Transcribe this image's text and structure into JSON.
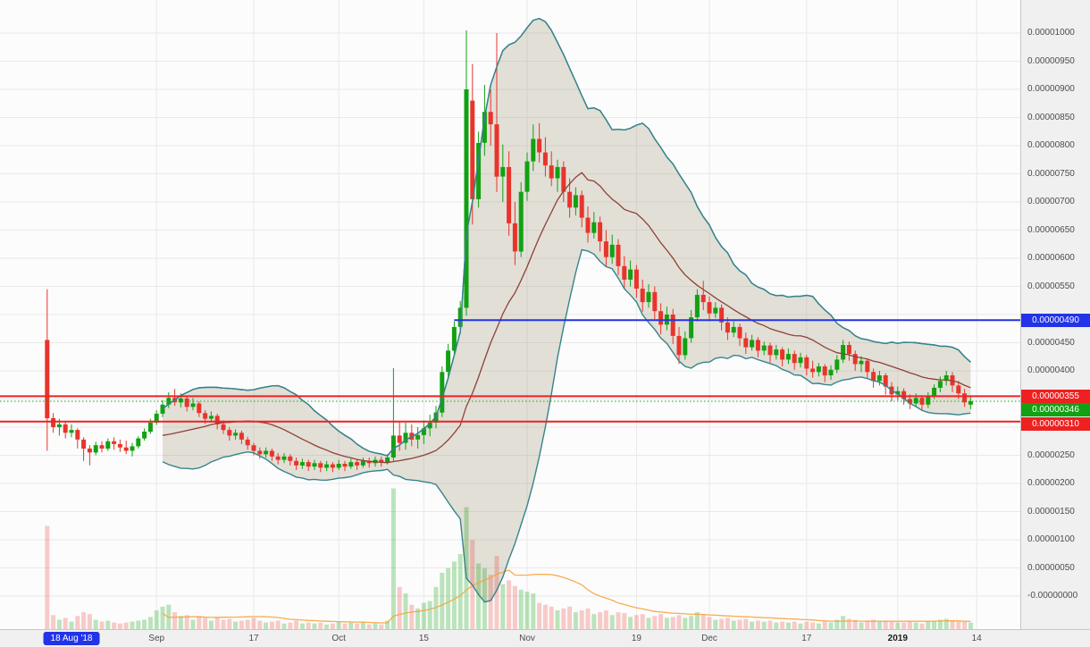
{
  "chart_data": {
    "type": "candlestick",
    "value_scale": "price values are in units of 0.00000001",
    "y_axis": {
      "labels": [
        {
          "text": "0.00001000",
          "value": 1000
        },
        {
          "text": "0.00000950",
          "value": 950
        },
        {
          "text": "0.00000900",
          "value": 900
        },
        {
          "text": "0.00000850",
          "value": 850
        },
        {
          "text": "0.00000800",
          "value": 800
        },
        {
          "text": "0.00000750",
          "value": 750
        },
        {
          "text": "0.00000700",
          "value": 700
        },
        {
          "text": "0.00000650",
          "value": 650
        },
        {
          "text": "0.00000600",
          "value": 600
        },
        {
          "text": "0.00000550",
          "value": 550
        },
        {
          "text": "0.00000450",
          "value": 450
        },
        {
          "text": "0.00000400",
          "value": 400
        },
        {
          "text": "0.00000250",
          "value": 250
        },
        {
          "text": "0.00000200",
          "value": 200
        },
        {
          "text": "0.00000150",
          "value": 150
        },
        {
          "text": "0.00000100",
          "value": 100
        },
        {
          "text": "0.00000050",
          "value": 50
        },
        {
          "text": "-0.00000000",
          "value": 0
        }
      ],
      "grid_step": 50,
      "range": [
        0,
        1045
      ]
    },
    "x_axis": {
      "ticks": [
        {
          "label": "Sep",
          "day": 18
        },
        {
          "label": "17",
          "day": 34
        },
        {
          "label": "Oct",
          "day": 48
        },
        {
          "label": "15",
          "day": 62
        },
        {
          "label": "Nov",
          "day": 79
        },
        {
          "label": "19",
          "day": 97
        },
        {
          "label": "Dec",
          "day": 109
        },
        {
          "label": "17",
          "day": 125
        },
        {
          "label": "2019",
          "day": 140,
          "emphasis": true
        },
        {
          "label": "14",
          "day": 153
        }
      ],
      "date_badge": {
        "label": "18 Aug '18",
        "day": 4,
        "color": "#2233e8"
      }
    },
    "candle_colors": {
      "up": "#12a112",
      "down": "#e8342c"
    },
    "candles": {
      "columns": [
        "open",
        "high",
        "low",
        "close",
        "volume"
      ],
      "rows": [
        [
          455,
          545,
          258,
          316,
          110
        ],
        [
          316,
          325,
          290,
          300,
          15
        ],
        [
          300,
          315,
          285,
          305,
          10
        ],
        [
          305,
          310,
          280,
          290,
          12
        ],
        [
          290,
          305,
          282,
          295,
          8
        ],
        [
          295,
          298,
          262,
          278,
          14
        ],
        [
          278,
          282,
          240,
          262,
          18
        ],
        [
          262,
          268,
          232,
          255,
          16
        ],
        [
          255,
          274,
          250,
          268,
          10
        ],
        [
          268,
          275,
          255,
          262,
          8
        ],
        [
          262,
          280,
          258,
          275,
          9
        ],
        [
          275,
          282,
          260,
          270,
          7
        ],
        [
          270,
          278,
          256,
          264,
          6
        ],
        [
          264,
          276,
          252,
          258,
          7
        ],
        [
          258,
          272,
          248,
          266,
          8
        ],
        [
          266,
          284,
          262,
          280,
          9
        ],
        [
          280,
          298,
          276,
          292,
          10
        ],
        [
          292,
          315,
          288,
          308,
          13
        ],
        [
          308,
          330,
          304,
          324,
          20
        ],
        [
          324,
          348,
          318,
          340,
          24
        ],
        [
          340,
          362,
          334,
          352,
          26
        ],
        [
          352,
          368,
          338,
          344,
          18
        ],
        [
          344,
          360,
          335,
          351,
          14
        ],
        [
          351,
          356,
          328,
          336,
          15
        ],
        [
          336,
          352,
          330,
          342,
          10
        ],
        [
          342,
          346,
          318,
          325,
          14
        ],
        [
          325,
          330,
          306,
          315,
          12
        ],
        [
          315,
          328,
          308,
          320,
          9
        ],
        [
          320,
          324,
          296,
          305,
          12
        ],
        [
          305,
          312,
          288,
          295,
          10
        ],
        [
          295,
          300,
          276,
          285,
          11
        ],
        [
          285,
          296,
          278,
          290,
          8
        ],
        [
          290,
          294,
          270,
          278,
          9
        ],
        [
          278,
          283,
          260,
          268,
          10
        ],
        [
          268,
          272,
          250,
          258,
          12
        ],
        [
          258,
          264,
          244,
          252,
          9
        ],
        [
          252,
          264,
          246,
          258,
          7
        ],
        [
          258,
          262,
          240,
          248,
          8
        ],
        [
          248,
          254,
          234,
          242,
          9
        ],
        [
          242,
          254,
          236,
          248,
          6
        ],
        [
          248,
          252,
          232,
          240,
          7
        ],
        [
          240,
          246,
          224,
          232,
          9
        ],
        [
          232,
          244,
          226,
          238,
          6
        ],
        [
          238,
          242,
          222,
          230,
          7
        ],
        [
          230,
          242,
          224,
          236,
          6
        ],
        [
          236,
          240,
          220,
          228,
          7
        ],
        [
          228,
          240,
          222,
          234,
          5
        ],
        [
          234,
          238,
          220,
          228,
          6
        ],
        [
          228,
          242,
          224,
          235,
          8
        ],
        [
          235,
          240,
          222,
          230,
          6
        ],
        [
          230,
          244,
          226,
          238,
          7
        ],
        [
          238,
          242,
          224,
          232,
          6
        ],
        [
          232,
          246,
          228,
          240,
          7
        ],
        [
          240,
          246,
          228,
          236,
          5
        ],
        [
          236,
          248,
          230,
          242,
          6
        ],
        [
          242,
          248,
          230,
          238,
          5
        ],
        [
          238,
          252,
          234,
          246,
          9
        ],
        [
          246,
          405,
          240,
          285,
          150
        ],
        [
          285,
          310,
          258,
          272,
          45
        ],
        [
          272,
          308,
          260,
          290,
          38
        ],
        [
          290,
          305,
          266,
          278,
          26
        ],
        [
          278,
          300,
          262,
          286,
          22
        ],
        [
          286,
          312,
          270,
          298,
          28
        ],
        [
          298,
          322,
          284,
          308,
          30
        ],
        [
          308,
          338,
          298,
          326,
          45
        ],
        [
          326,
          408,
          318,
          398,
          60
        ],
        [
          398,
          448,
          388,
          436,
          65
        ],
        [
          436,
          488,
          426,
          478,
          72
        ],
        [
          478,
          524,
          466,
          512,
          80
        ],
        [
          512,
          1005,
          498,
          900,
          130
        ],
        [
          880,
          945,
          660,
          705,
          95
        ],
        [
          705,
          825,
          690,
          805,
          70
        ],
        [
          805,
          908,
          782,
          860,
          65
        ],
        [
          860,
          900,
          800,
          838,
          58
        ],
        [
          838,
          1000,
          718,
          745,
          78
        ],
        [
          745,
          802,
          700,
          762,
          48
        ],
        [
          762,
          790,
          640,
          662,
          52
        ],
        [
          662,
          700,
          588,
          612,
          46
        ],
        [
          612,
          735,
          602,
          718,
          42
        ],
        [
          718,
          788,
          702,
          772,
          40
        ],
        [
          772,
          838,
          755,
          812,
          38
        ],
        [
          812,
          840,
          770,
          788,
          28
        ],
        [
          788,
          815,
          745,
          765,
          26
        ],
        [
          765,
          790,
          728,
          742,
          24
        ],
        [
          742,
          775,
          718,
          762,
          20
        ],
        [
          762,
          772,
          700,
          718,
          22
        ],
        [
          718,
          742,
          672,
          690,
          24
        ],
        [
          690,
          726,
          676,
          712,
          18
        ],
        [
          712,
          720,
          655,
          672,
          20
        ],
        [
          672,
          692,
          628,
          645,
          22
        ],
        [
          645,
          682,
          635,
          664,
          16
        ],
        [
          664,
          674,
          612,
          630,
          18
        ],
        [
          630,
          650,
          585,
          602,
          20
        ],
        [
          602,
          642,
          590,
          624,
          15
        ],
        [
          624,
          634,
          570,
          586,
          18
        ],
        [
          586,
          604,
          545,
          562,
          17
        ],
        [
          562,
          596,
          550,
          580,
          13
        ],
        [
          580,
          588,
          530,
          546,
          15
        ],
        [
          546,
          562,
          505,
          522,
          16
        ],
        [
          522,
          554,
          512,
          540,
          12
        ],
        [
          540,
          550,
          492,
          506,
          14
        ],
        [
          506,
          520,
          465,
          482,
          16
        ],
        [
          482,
          514,
          472,
          500,
          12
        ],
        [
          500,
          510,
          448,
          462,
          13
        ],
        [
          462,
          478,
          412,
          428,
          15
        ],
        [
          428,
          470,
          420,
          458,
          12
        ],
        [
          458,
          508,
          450,
          495,
          14
        ],
        [
          495,
          545,
          488,
          535,
          18
        ],
        [
          535,
          560,
          508,
          522,
          16
        ],
        [
          522,
          532,
          488,
          502,
          13
        ],
        [
          502,
          522,
          494,
          512,
          10
        ],
        [
          512,
          518,
          472,
          486,
          11
        ],
        [
          486,
          495,
          455,
          468,
          12
        ],
        [
          468,
          488,
          460,
          478,
          9
        ],
        [
          478,
          484,
          444,
          458,
          10
        ],
        [
          458,
          468,
          430,
          442,
          11
        ],
        [
          442,
          464,
          436,
          455,
          8
        ],
        [
          455,
          460,
          424,
          436,
          9
        ],
        [
          436,
          452,
          428,
          445,
          8
        ],
        [
          445,
          450,
          415,
          428,
          9
        ],
        [
          428,
          446,
          420,
          438,
          7
        ],
        [
          438,
          442,
          408,
          420,
          8
        ],
        [
          420,
          440,
          412,
          430,
          7
        ],
        [
          430,
          436,
          402,
          414,
          8
        ],
        [
          414,
          432,
          406,
          424,
          6
        ],
        [
          424,
          428,
          392,
          404,
          8
        ],
        [
          404,
          418,
          388,
          398,
          7
        ],
        [
          398,
          414,
          390,
          408,
          6
        ],
        [
          408,
          412,
          380,
          392,
          8
        ],
        [
          392,
          410,
          384,
          402,
          7
        ],
        [
          402,
          428,
          396,
          420,
          10
        ],
        [
          420,
          455,
          414,
          446,
          14
        ],
        [
          446,
          452,
          418,
          430,
          11
        ],
        [
          430,
          436,
          400,
          412,
          10
        ],
        [
          412,
          426,
          398,
          418,
          7
        ],
        [
          418,
          422,
          388,
          398,
          9
        ],
        [
          398,
          404,
          370,
          382,
          10
        ],
        [
          382,
          400,
          374,
          392,
          8
        ],
        [
          392,
          396,
          358,
          372,
          9
        ],
        [
          372,
          380,
          346,
          358,
          8
        ],
        [
          358,
          372,
          348,
          364,
          7
        ],
        [
          364,
          369,
          340,
          350,
          7
        ],
        [
          350,
          358,
          332,
          342,
          8
        ],
        [
          342,
          360,
          336,
          352,
          7
        ],
        [
          352,
          357,
          331,
          340,
          6
        ],
        [
          340,
          362,
          334,
          356,
          8
        ],
        [
          356,
          376,
          350,
          370,
          9
        ],
        [
          370,
          390,
          362,
          382,
          10
        ],
        [
          382,
          400,
          374,
          392,
          11
        ],
        [
          392,
          398,
          362,
          374,
          9
        ],
        [
          374,
          382,
          350,
          360,
          8
        ],
        [
          360,
          368,
          336,
          344,
          8
        ],
        [
          340,
          356,
          332,
          346,
          7
        ]
      ]
    },
    "indicators": {
      "bollinger_bands": {
        "period": 20,
        "stddev": 2,
        "band_color": "#37838c",
        "basis_color": "#8f4136",
        "fill_color": "rgba(167,157,125,0.30)"
      },
      "volume": {
        "up_color": "rgba(18,161,18,0.28)",
        "down_color": "rgba(232,52,44,0.25)"
      },
      "volume_ma": {
        "period": 20,
        "color": "#f7a33c"
      }
    },
    "price_lines": [
      {
        "label": "0.00000490",
        "value": 490,
        "color": "#2233e8",
        "style": "solid",
        "starts_at_candle": 67,
        "full_width": false
      },
      {
        "label": "0.00000355",
        "value": 355,
        "color": "#ef2020",
        "style": "solid",
        "full_width": true
      },
      {
        "label": "0.00000310",
        "value": 310,
        "color": "#ef2020",
        "style": "solid",
        "full_width": true
      }
    ],
    "current_price": {
      "label": "0.00000346",
      "value": 346,
      "color": "#12a112",
      "line_style": "dotted"
    }
  }
}
